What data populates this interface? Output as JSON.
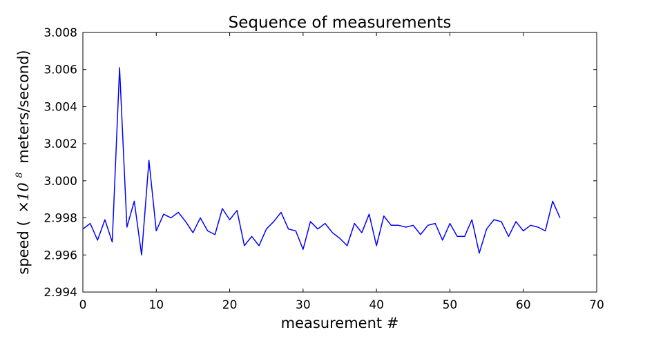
{
  "chart_data": {
    "type": "line",
    "title": "Sequence of measurements",
    "xlabel": "measurement #",
    "ylabel": {
      "prefix": "speed (",
      "times": "×10",
      "exponent": "8",
      "suffix": " meters/second)"
    },
    "xlim": [
      0,
      70
    ],
    "ylim": [
      2.994,
      3.008
    ],
    "xticks": [
      0,
      10,
      20,
      30,
      40,
      50,
      60,
      70
    ],
    "xtick_labels": [
      "0",
      "10",
      "20",
      "30",
      "40",
      "50",
      "60",
      "70"
    ],
    "yticks": [
      2.994,
      2.996,
      2.998,
      3.0,
      3.002,
      3.004,
      3.006,
      3.008
    ],
    "ytick_labels": [
      "2.994",
      "2.996",
      "2.998",
      "3.000",
      "3.002",
      "3.004",
      "3.006",
      "3.008"
    ],
    "grid": false,
    "legend": "none",
    "series": [
      {
        "color": "#0000ff",
        "x": [
          0,
          1,
          2,
          3,
          4,
          5,
          6,
          7,
          8,
          9,
          10,
          11,
          12,
          13,
          14,
          15,
          16,
          17,
          18,
          19,
          20,
          21,
          22,
          23,
          24,
          25,
          26,
          27,
          28,
          29,
          30,
          31,
          32,
          33,
          34,
          35,
          36,
          37,
          38,
          39,
          40,
          41,
          42,
          43,
          44,
          45,
          46,
          47,
          48,
          49,
          50,
          51,
          52,
          53,
          54,
          55,
          56,
          57,
          58,
          59,
          60,
          61,
          62,
          63,
          64,
          65
        ],
        "values": [
          2.9974,
          2.9977,
          2.9968,
          2.9979,
          2.9967,
          3.0061,
          2.9975,
          2.9989,
          2.996,
          3.0011,
          2.9973,
          2.9982,
          2.998,
          2.9983,
          2.9978,
          2.9972,
          2.998,
          2.9973,
          2.9971,
          2.9985,
          2.9979,
          2.9984,
          2.9965,
          2.997,
          2.9965,
          2.9974,
          2.9978,
          2.9983,
          2.9974,
          2.9973,
          2.9963,
          2.9978,
          2.9974,
          2.9977,
          2.9972,
          2.9969,
          2.9965,
          2.9977,
          2.9972,
          2.9982,
          2.9965,
          2.9981,
          2.9976,
          2.9976,
          2.9975,
          2.9976,
          2.9971,
          2.9976,
          2.9977,
          2.9968,
          2.9977,
          2.997,
          2.997,
          2.9979,
          2.9961,
          2.9974,
          2.9979,
          2.9978,
          2.997,
          2.9978,
          2.9973,
          2.9976,
          2.9975,
          2.9973,
          2.9989,
          2.998
        ]
      }
    ]
  }
}
